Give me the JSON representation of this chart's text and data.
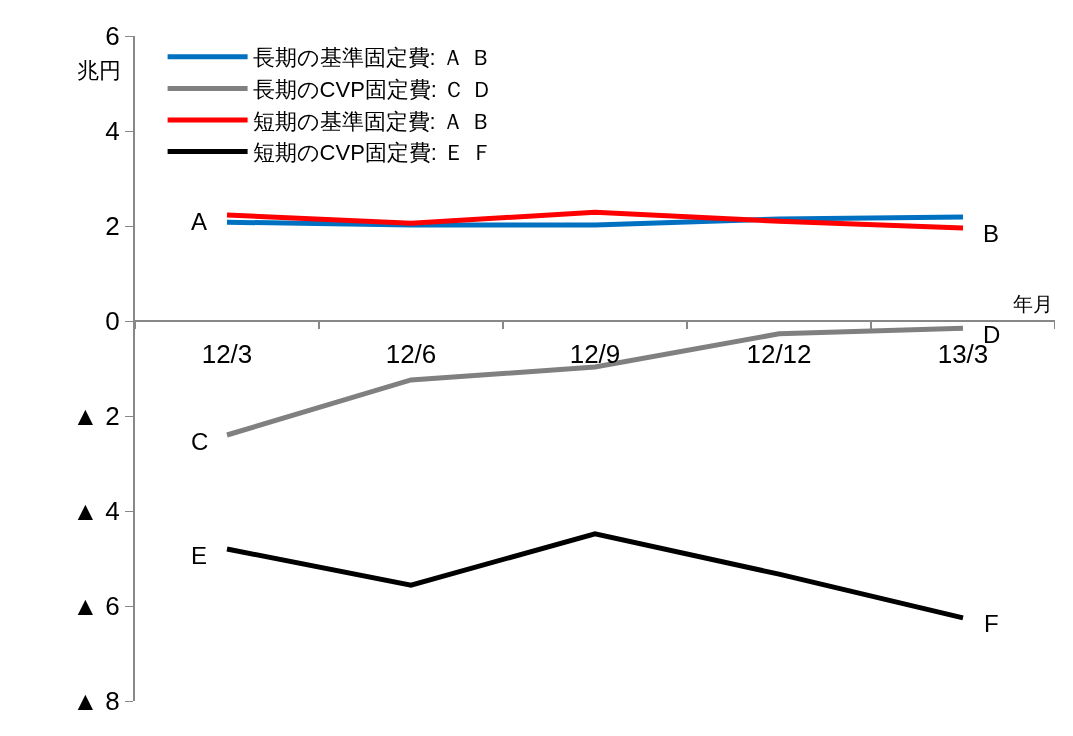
{
  "chart_data": {
    "type": "line",
    "ylabel": "兆円",
    "xlabel": "年月",
    "categories": [
      "12/3",
      "12/6",
      "12/9",
      "12/12",
      "13/3"
    ],
    "series": [
      {
        "name": "長期の基準固定費: Ａ Ｂ",
        "color": "#0070c0",
        "values": [
          2.08,
          2.02,
          2.02,
          2.15,
          2.19
        ]
      },
      {
        "name": "長期のCVP固定費: Ｃ Ｄ",
        "color": "#808080",
        "values": [
          -2.4,
          -1.24,
          -0.97,
          -0.27,
          -0.15
        ]
      },
      {
        "name": "短期の基準固定費: Ａ Ｂ",
        "color": "#ff0000",
        "values": [
          2.23,
          2.06,
          2.29,
          2.1,
          1.96
        ]
      },
      {
        "name": "短期のCVP固定費: Ｅ Ｆ",
        "color": "#000000",
        "values": [
          -4.8,
          -5.56,
          -4.48,
          -5.33,
          -6.25
        ]
      }
    ],
    "ylim": [
      -8,
      6
    ],
    "yticks": [
      6,
      4,
      2,
      0,
      {
        "value": -2,
        "label": "▲ 2"
      },
      {
        "value": -4,
        "label": "▲ 4"
      },
      {
        "value": -6,
        "label": "▲ 6"
      },
      {
        "value": -8,
        "label": "▲ 8"
      }
    ],
    "annotations": [
      {
        "text": "A",
        "x": "12/3",
        "y": 2.23
      },
      {
        "text": "B",
        "x": "13/3",
        "y": 1.96
      },
      {
        "text": "C",
        "x": "12/3",
        "y": -2.4
      },
      {
        "text": "D",
        "x": "13/3",
        "y": -0.15
      },
      {
        "text": "E",
        "x": "12/3",
        "y": -4.8
      },
      {
        "text": "F",
        "x": "13/3",
        "y": -6.25
      }
    ],
    "grid": false,
    "legend": "top",
    "marker": "none",
    "line_style": "solid"
  }
}
